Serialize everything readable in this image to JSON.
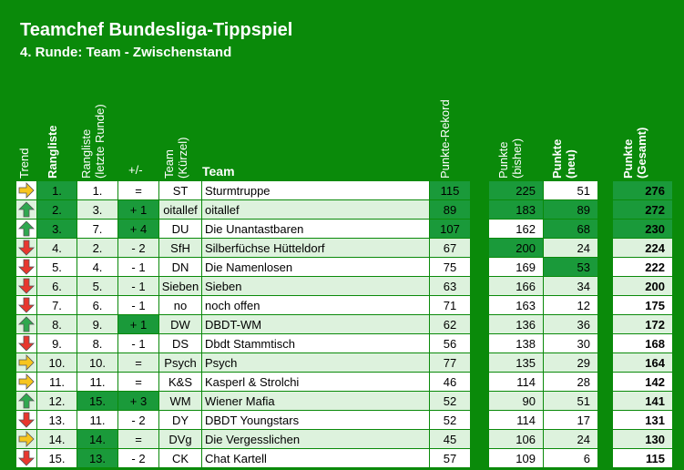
{
  "title": "Teamchef Bundesliga-Tippspiel",
  "subtitle": "4. Runde: Team - Zwischenstand",
  "headers": {
    "trend": "Trend",
    "rangliste": "Rangliste",
    "rangliste_letzte_1": "Rangliste",
    "rangliste_letzte_2": "(letzte Runde)",
    "plusminus": "+/-",
    "team_kurz_1": "Team",
    "team_kurz_2": "(Kürzel)",
    "team": "Team",
    "rekord": "Punkte-Rekord",
    "bisher_1": "Punkte",
    "bisher_2": "(bisher)",
    "neu_1": "Punkte",
    "neu_2": "(neu)",
    "gesamt_1": "Punkte",
    "gesamt_2": "(Gesamt)"
  },
  "colors": {
    "up": "#2fa84f",
    "down": "#e8372e",
    "same": "#f7c51e",
    "highlight": "#1a9a3a"
  },
  "rows": [
    {
      "trend": "same",
      "rank": "1.",
      "last": "1.",
      "diff": "=",
      "abbr": "ST",
      "team": "Sturmtruppe",
      "record": "115",
      "bisher": "225",
      "neu": "51",
      "total": "276",
      "hl": [
        "rank",
        "record",
        "bisher",
        "total"
      ]
    },
    {
      "trend": "up",
      "rank": "2.",
      "last": "3.",
      "diff": "+ 1",
      "abbr": "oitallef",
      "team": "oitallef",
      "record": "89",
      "bisher": "183",
      "neu": "89",
      "total": "272",
      "hl": [
        "rank",
        "diff",
        "record",
        "bisher",
        "neu",
        "total"
      ]
    },
    {
      "trend": "up",
      "rank": "3.",
      "last": "7.",
      "diff": "+ 4",
      "abbr": "DU",
      "team": "Die Unantastbaren",
      "record": "107",
      "bisher": "162",
      "neu": "68",
      "total": "230",
      "hl": [
        "rank",
        "diff",
        "record",
        "neu",
        "total"
      ]
    },
    {
      "trend": "down",
      "rank": "4.",
      "last": "2.",
      "diff": "- 2",
      "abbr": "SfH",
      "team": "Silberfüchse Hütteldorf",
      "record": "67",
      "bisher": "200",
      "neu": "24",
      "total": "224",
      "hl": [
        "bisher"
      ]
    },
    {
      "trend": "down",
      "rank": "5.",
      "last": "4.",
      "diff": "- 1",
      "abbr": "DN",
      "team": "Die Namenlosen",
      "record": "75",
      "bisher": "169",
      "neu": "53",
      "total": "222",
      "hl": [
        "neu"
      ]
    },
    {
      "trend": "down",
      "rank": "6.",
      "last": "5.",
      "diff": "- 1",
      "abbr": "Sieben",
      "team": "Sieben",
      "record": "63",
      "bisher": "166",
      "neu": "34",
      "total": "200",
      "hl": []
    },
    {
      "trend": "down",
      "rank": "7.",
      "last": "6.",
      "diff": "- 1",
      "abbr": "no",
      "team": "noch offen",
      "record": "71",
      "bisher": "163",
      "neu": "12",
      "total": "175",
      "hl": []
    },
    {
      "trend": "up",
      "rank": "8.",
      "last": "9.",
      "diff": "+ 1",
      "abbr": "DW",
      "team": "DBDT-WM",
      "record": "62",
      "bisher": "136",
      "neu": "36",
      "total": "172",
      "hl": [
        "diff"
      ]
    },
    {
      "trend": "down",
      "rank": "9.",
      "last": "8.",
      "diff": "- 1",
      "abbr": "DS",
      "team": "Dbdt Stammtisch",
      "record": "56",
      "bisher": "138",
      "neu": "30",
      "total": "168",
      "hl": []
    },
    {
      "trend": "same",
      "rank": "10.",
      "last": "10.",
      "diff": "=",
      "abbr": "Psych",
      "team": "Psych",
      "record": "77",
      "bisher": "135",
      "neu": "29",
      "total": "164",
      "hl": []
    },
    {
      "trend": "same",
      "rank": "11.",
      "last": "11.",
      "diff": "=",
      "abbr": "K&S",
      "team": "Kasperl & Strolchi",
      "record": "46",
      "bisher": "114",
      "neu": "28",
      "total": "142",
      "hl": []
    },
    {
      "trend": "up",
      "rank": "12.",
      "last": "15.",
      "diff": "+ 3",
      "abbr": "WM",
      "team": "Wiener Mafia",
      "record": "52",
      "bisher": "90",
      "neu": "51",
      "total": "141",
      "hl": [
        "last",
        "diff"
      ]
    },
    {
      "trend": "down",
      "rank": "13.",
      "last": "11.",
      "diff": "- 2",
      "abbr": "DY",
      "team": "DBDT Youngstars",
      "record": "52",
      "bisher": "114",
      "neu": "17",
      "total": "131",
      "hl": []
    },
    {
      "trend": "same",
      "rank": "14.",
      "last": "14.",
      "diff": "=",
      "abbr": "DVg",
      "team": "Die Vergesslichen",
      "record": "45",
      "bisher": "106",
      "neu": "24",
      "total": "130",
      "hl": [
        "last"
      ]
    },
    {
      "trend": "down",
      "rank": "15.",
      "last": "13.",
      "diff": "- 2",
      "abbr": "CK",
      "team": "Chat Kartell",
      "record": "57",
      "bisher": "109",
      "neu": "6",
      "total": "115",
      "hl": [
        "last"
      ]
    }
  ]
}
